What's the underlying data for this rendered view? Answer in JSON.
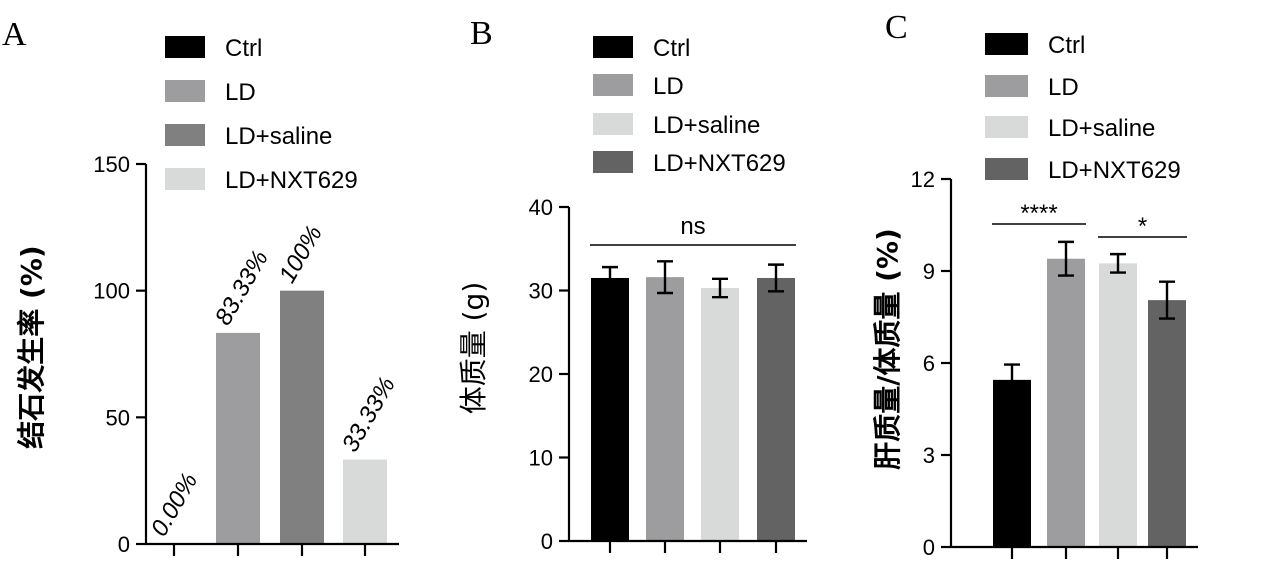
{
  "chart_data": [
    {
      "panel": "A",
      "type": "bar",
      "ylabel": "结石发生率 (%)",
      "ylim": [
        0,
        150
      ],
      "yticks": [
        "0",
        "50",
        "100",
        "150"
      ],
      "series": [
        {
          "name": "Ctrl",
          "value": 0.0,
          "label": "0.00%",
          "color": "#000000"
        },
        {
          "name": "LD",
          "value": 83.33,
          "label": "83.33%",
          "color": "#9d9da0"
        },
        {
          "name": "LD+saline",
          "value": 100,
          "label": "100%",
          "color": "#808080"
        },
        {
          "name": "LD+NXT629",
          "value": 33.33,
          "label": "33.33%",
          "color": "#d8d9d9"
        }
      ]
    },
    {
      "panel": "B",
      "type": "bar",
      "ylabel": "体质量 (g)",
      "ylim": [
        0,
        40
      ],
      "yticks": [
        "0",
        "10",
        "20",
        "30",
        "40"
      ],
      "significance": [
        {
          "from": 0,
          "to": 3,
          "text": "ns"
        }
      ],
      "series": [
        {
          "name": "Ctrl",
          "value": 31.5,
          "error": 1.3,
          "color": "#000000"
        },
        {
          "name": "LD",
          "value": 31.6,
          "error": 1.9,
          "color": "#9d9da0"
        },
        {
          "name": "LD+saline",
          "value": 30.3,
          "error": 1.1,
          "color": "#d8d9d9"
        },
        {
          "name": "LD+NXT629",
          "value": 31.5,
          "error": 1.6,
          "color": "#636363"
        }
      ]
    },
    {
      "panel": "C",
      "type": "bar",
      "ylabel": "肝质量/体质量 (%)",
      "ylim": [
        0,
        12
      ],
      "yticks": [
        "0",
        "3",
        "6",
        "9",
        "12"
      ],
      "significance": [
        {
          "from": 0,
          "to": 1,
          "text": "****"
        },
        {
          "from": 2,
          "to": 3,
          "text": "*"
        }
      ],
      "series": [
        {
          "name": "Ctrl",
          "value": 5.45,
          "error": 0.5,
          "color": "#000000"
        },
        {
          "name": "LD",
          "value": 9.4,
          "error": 0.55,
          "color": "#9d9da0"
        },
        {
          "name": "LD+saline",
          "value": 9.25,
          "error": 0.3,
          "color": "#d8d9d9"
        },
        {
          "name": "LD+NXT629",
          "value": 8.05,
          "error": 0.6,
          "color": "#636363"
        }
      ]
    }
  ]
}
